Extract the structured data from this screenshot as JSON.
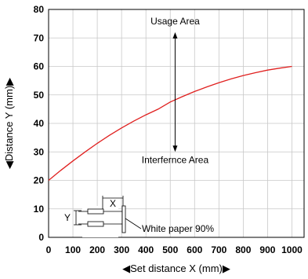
{
  "chart_data": {
    "type": "line",
    "xlabel": "◀Set distance X (mm)▶",
    "ylabel": "◀Distance Y (mm)▶",
    "xlim": [
      0,
      1050
    ],
    "ylim": [
      0,
      80
    ],
    "x_ticks": [
      0,
      100,
      200,
      300,
      400,
      500,
      600,
      700,
      800,
      900,
      1000
    ],
    "y_ticks": [
      0,
      10,
      20,
      30,
      40,
      50,
      60,
      70,
      80
    ],
    "grid": true,
    "series_color": "#e0201f",
    "series": [
      {
        "x": [
          0,
          50,
          100,
          150,
          200,
          250,
          300,
          350,
          400,
          450,
          500,
          550,
          600,
          650,
          700,
          750,
          800,
          850,
          900,
          950,
          1000
        ],
        "values": [
          20,
          23.5,
          26.8,
          30,
          33,
          35.8,
          38.4,
          40.8,
          43,
          45,
          47.5,
          49.4,
          51.2,
          52.8,
          54.3,
          55.6,
          56.8,
          57.8,
          58.7,
          59.4,
          60
        ]
      }
    ],
    "annotations": {
      "usage_area": "Usage Area",
      "interference_area": "Interfernce Area",
      "arrow_x": 520,
      "arrow_y_top": 72,
      "arrow_y_bottom": 30,
      "white_paper": "White paper 90%",
      "inset_x_label": "X",
      "inset_y_label": "Y"
    }
  }
}
